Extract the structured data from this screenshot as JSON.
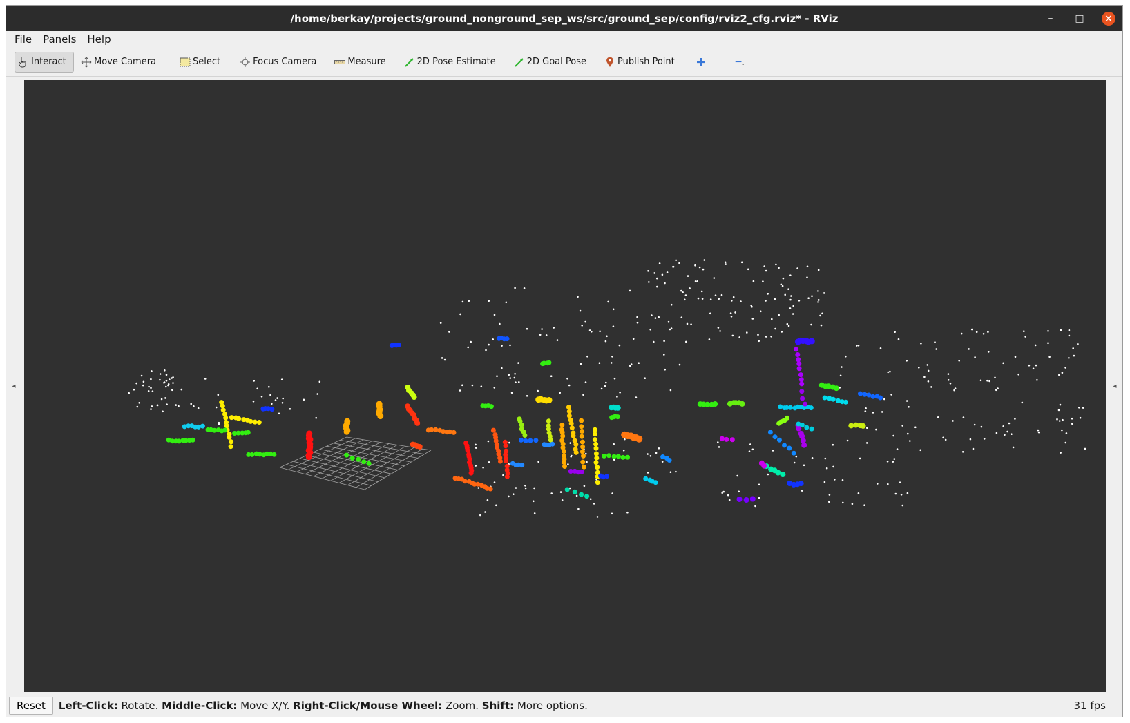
{
  "window": {
    "title": "/home/berkay/projects/ground_nonground_sep_ws/src/ground_sep/config/rviz2_cfg.rviz* - RViz",
    "controls": {
      "minimize": "–",
      "maximize": "□",
      "close": "×"
    }
  },
  "menu": [
    {
      "label": "File"
    },
    {
      "label": "Panels"
    },
    {
      "label": "Help"
    }
  ],
  "toolbar": {
    "interact": "Interact",
    "move_camera": "Move Camera",
    "select": "Select",
    "focus_camera": "Focus Camera",
    "measure": "Measure",
    "pose_estimate": "2D Pose Estimate",
    "goal_pose": "2D Goal Pose",
    "publish_point": "Publish Point"
  },
  "status": {
    "reset": "Reset",
    "hint_1_key": "Left-Click:",
    "hint_1_val": " Rotate. ",
    "hint_2_key": "Middle-Click:",
    "hint_2_val": " Move X/Y. ",
    "hint_3_key": "Right-Click/Mouse Wheel:",
    "hint_3_val": " Zoom. ",
    "hint_4_key": "Shift:",
    "hint_4_val": " More options.",
    "fps": "31 fps"
  },
  "colors": {
    "viewport_bg": "#303030",
    "titlebar_bg": "#2c2c2c",
    "close_button": "#e95420",
    "grid": "#a0a0a0",
    "ground_points": "#ffffff"
  }
}
